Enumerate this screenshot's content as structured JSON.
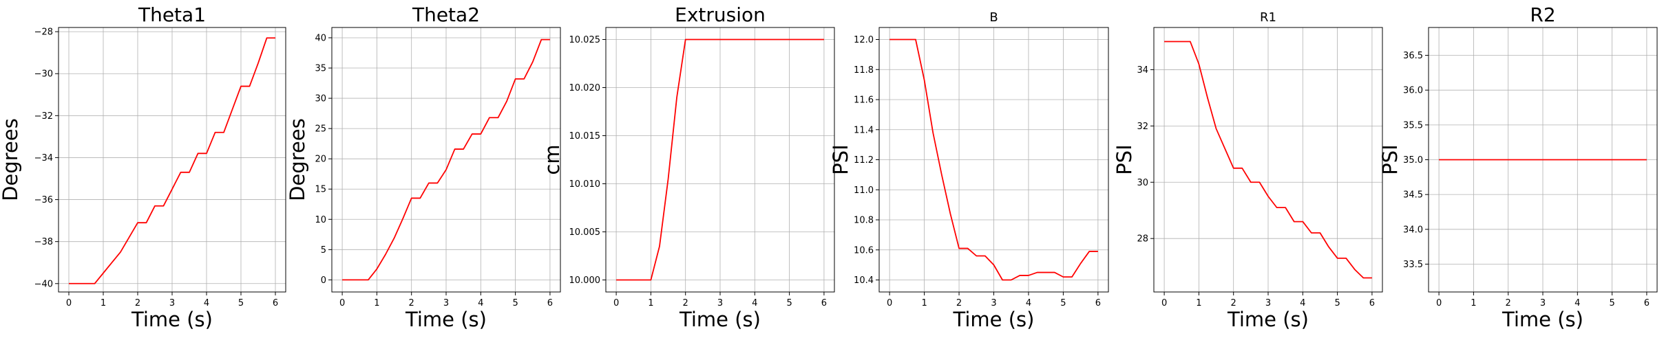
{
  "chart_data": [
    {
      "type": "line",
      "title": "Theta1",
      "title_size": "large",
      "xlabel": "Time (s)",
      "ylabel": "Degrees",
      "xlim": [
        -0.3,
        6.3
      ],
      "ylim": [
        -40.4,
        -27.8
      ],
      "xticks": [
        0,
        1,
        2,
        3,
        4,
        5,
        6
      ],
      "xtick_labels": [
        "0",
        "1",
        "2",
        "3",
        "4",
        "5",
        "6"
      ],
      "yticks": [
        -40,
        -38,
        -36,
        -34,
        -32,
        -30,
        -28
      ],
      "ytick_labels": [
        "−40",
        "−38",
        "−36",
        "−34",
        "−32",
        "−30",
        "−28"
      ],
      "grid": true,
      "series": [
        {
          "color": "#ff0000",
          "x": [
            0,
            0.75,
            1.0,
            1.25,
            1.5,
            1.75,
            2.0,
            2.25,
            2.5,
            2.75,
            3.0,
            3.25,
            3.5,
            3.75,
            4.0,
            4.25,
            4.5,
            4.75,
            5.0,
            5.25,
            5.5,
            5.75,
            6.0
          ],
          "y": [
            -40.0,
            -40.0,
            -39.5,
            -39.0,
            -38.5,
            -37.8,
            -37.1,
            -37.1,
            -36.3,
            -36.3,
            -35.5,
            -34.7,
            -34.7,
            -33.8,
            -33.8,
            -32.8,
            -32.8,
            -31.7,
            -30.6,
            -30.6,
            -29.5,
            -28.3,
            -28.3
          ]
        }
      ]
    },
    {
      "type": "line",
      "title": "Theta2",
      "title_size": "large",
      "xlabel": "Time (s)",
      "ylabel": "Degrees",
      "xlim": [
        -0.3,
        6.3
      ],
      "ylim": [
        -2.0,
        41.7
      ],
      "xticks": [
        0,
        1,
        2,
        3,
        4,
        5,
        6
      ],
      "xtick_labels": [
        "0",
        "1",
        "2",
        "3",
        "4",
        "5",
        "6"
      ],
      "yticks": [
        0,
        5,
        10,
        15,
        20,
        25,
        30,
        35,
        40
      ],
      "ytick_labels": [
        "0",
        "5",
        "10",
        "15",
        "20",
        "25",
        "30",
        "35",
        "40"
      ],
      "grid": true,
      "series": [
        {
          "color": "#ff0000",
          "x": [
            0,
            0.75,
            1.0,
            1.25,
            1.5,
            1.75,
            2.0,
            2.25,
            2.5,
            2.75,
            3.0,
            3.25,
            3.5,
            3.75,
            4.0,
            4.25,
            4.5,
            4.75,
            5.0,
            5.25,
            5.5,
            5.75,
            6.0
          ],
          "y": [
            0,
            0,
            1.8,
            4.2,
            6.9,
            10.1,
            13.5,
            13.5,
            16.0,
            16.0,
            18.2,
            21.6,
            21.6,
            24.1,
            24.1,
            26.8,
            26.8,
            29.5,
            33.2,
            33.2,
            36.0,
            39.7,
            39.7
          ]
        }
      ]
    },
    {
      "type": "line",
      "title": "Extrusion",
      "title_size": "large",
      "xlabel": "Time (s)",
      "ylabel": "cm",
      "xlim": [
        -0.3,
        6.3
      ],
      "ylim": [
        9.99875,
        10.02625
      ],
      "xticks": [
        0,
        1,
        2,
        3,
        4,
        5,
        6
      ],
      "xtick_labels": [
        "0",
        "1",
        "2",
        "3",
        "4",
        "5",
        "6"
      ],
      "yticks": [
        10.0,
        10.005,
        10.01,
        10.015,
        10.02,
        10.025
      ],
      "ytick_labels": [
        "10.000",
        "10.005",
        "10.010",
        "10.015",
        "10.020",
        "10.025"
      ],
      "grid": true,
      "series": [
        {
          "color": "#ff0000",
          "x": [
            0,
            0.75,
            1.0,
            1.25,
            1.5,
            1.75,
            2.0,
            2.5,
            6.0
          ],
          "y": [
            10.0,
            10.0,
            10.0,
            10.0035,
            10.0105,
            10.019,
            10.025,
            10.025,
            10.025
          ]
        }
      ]
    },
    {
      "type": "line",
      "title": "B",
      "title_size": "small",
      "xlabel": "Time (s)",
      "ylabel": "PSI",
      "xlim": [
        -0.3,
        6.3
      ],
      "ylim": [
        10.32,
        12.08
      ],
      "xticks": [
        0,
        1,
        2,
        3,
        4,
        5,
        6
      ],
      "xtick_labels": [
        "0",
        "1",
        "2",
        "3",
        "4",
        "5",
        "6"
      ],
      "yticks": [
        10.4,
        10.6,
        10.8,
        11.0,
        11.2,
        11.4,
        11.6,
        11.8,
        12.0
      ],
      "ytick_labels": [
        "10.4",
        "10.6",
        "10.8",
        "11.0",
        "11.2",
        "11.4",
        "11.6",
        "11.8",
        "12.0"
      ],
      "grid": true,
      "series": [
        {
          "color": "#ff0000",
          "x": [
            0,
            0.75,
            1.0,
            1.25,
            1.5,
            1.75,
            2.0,
            2.25,
            2.5,
            2.75,
            3.0,
            3.25,
            3.5,
            3.75,
            4.0,
            4.25,
            4.5,
            4.75,
            5.0,
            5.25,
            5.5,
            5.75,
            6.0
          ],
          "y": [
            12.0,
            12.0,
            11.73,
            11.38,
            11.1,
            10.84,
            10.61,
            10.61,
            10.56,
            10.56,
            10.5,
            10.4,
            10.4,
            10.43,
            10.43,
            10.45,
            10.45,
            10.45,
            10.42,
            10.42,
            10.51,
            10.59,
            10.59
          ]
        }
      ]
    },
    {
      "type": "line",
      "title": "R1",
      "title_size": "small",
      "xlabel": "Time (s)",
      "ylabel": "PSI",
      "xlim": [
        -0.3,
        6.3
      ],
      "ylim": [
        26.1,
        35.5
      ],
      "xticks": [
        0,
        1,
        2,
        3,
        4,
        5,
        6
      ],
      "xtick_labels": [
        "0",
        "1",
        "2",
        "3",
        "4",
        "5",
        "6"
      ],
      "yticks": [
        28,
        30,
        32,
        34
      ],
      "ytick_labels": [
        "28",
        "30",
        "32",
        "34"
      ],
      "grid": true,
      "series": [
        {
          "color": "#ff0000",
          "x": [
            0,
            0.75,
            1.0,
            1.25,
            1.5,
            1.75,
            2.0,
            2.25,
            2.5,
            2.75,
            3.0,
            3.25,
            3.5,
            3.75,
            4.0,
            4.25,
            4.5,
            4.75,
            5.0,
            5.25,
            5.5,
            5.75,
            6.0
          ],
          "y": [
            35.0,
            35.0,
            34.2,
            33.0,
            31.9,
            31.2,
            30.5,
            30.5,
            30.0,
            30.0,
            29.5,
            29.1,
            29.1,
            28.6,
            28.6,
            28.2,
            28.2,
            27.7,
            27.3,
            27.3,
            26.9,
            26.6,
            26.6
          ]
        }
      ]
    },
    {
      "type": "line",
      "title": "R2",
      "title_size": "large",
      "xlabel": "Time (s)",
      "ylabel": "PSI",
      "xlim": [
        -0.3,
        6.3
      ],
      "ylim": [
        33.1,
        36.9
      ],
      "xticks": [
        0,
        1,
        2,
        3,
        4,
        5,
        6
      ],
      "xtick_labels": [
        "0",
        "1",
        "2",
        "3",
        "4",
        "5",
        "6"
      ],
      "yticks": [
        33.5,
        34.0,
        34.5,
        35.0,
        35.5,
        36.0,
        36.5
      ],
      "ytick_labels": [
        "33.5",
        "34.0",
        "34.5",
        "35.0",
        "35.5",
        "36.0",
        "36.5"
      ],
      "grid": true,
      "series": [
        {
          "color": "#ff0000",
          "x": [
            0,
            6.0
          ],
          "y": [
            35.0,
            35.0
          ]
        }
      ]
    }
  ]
}
